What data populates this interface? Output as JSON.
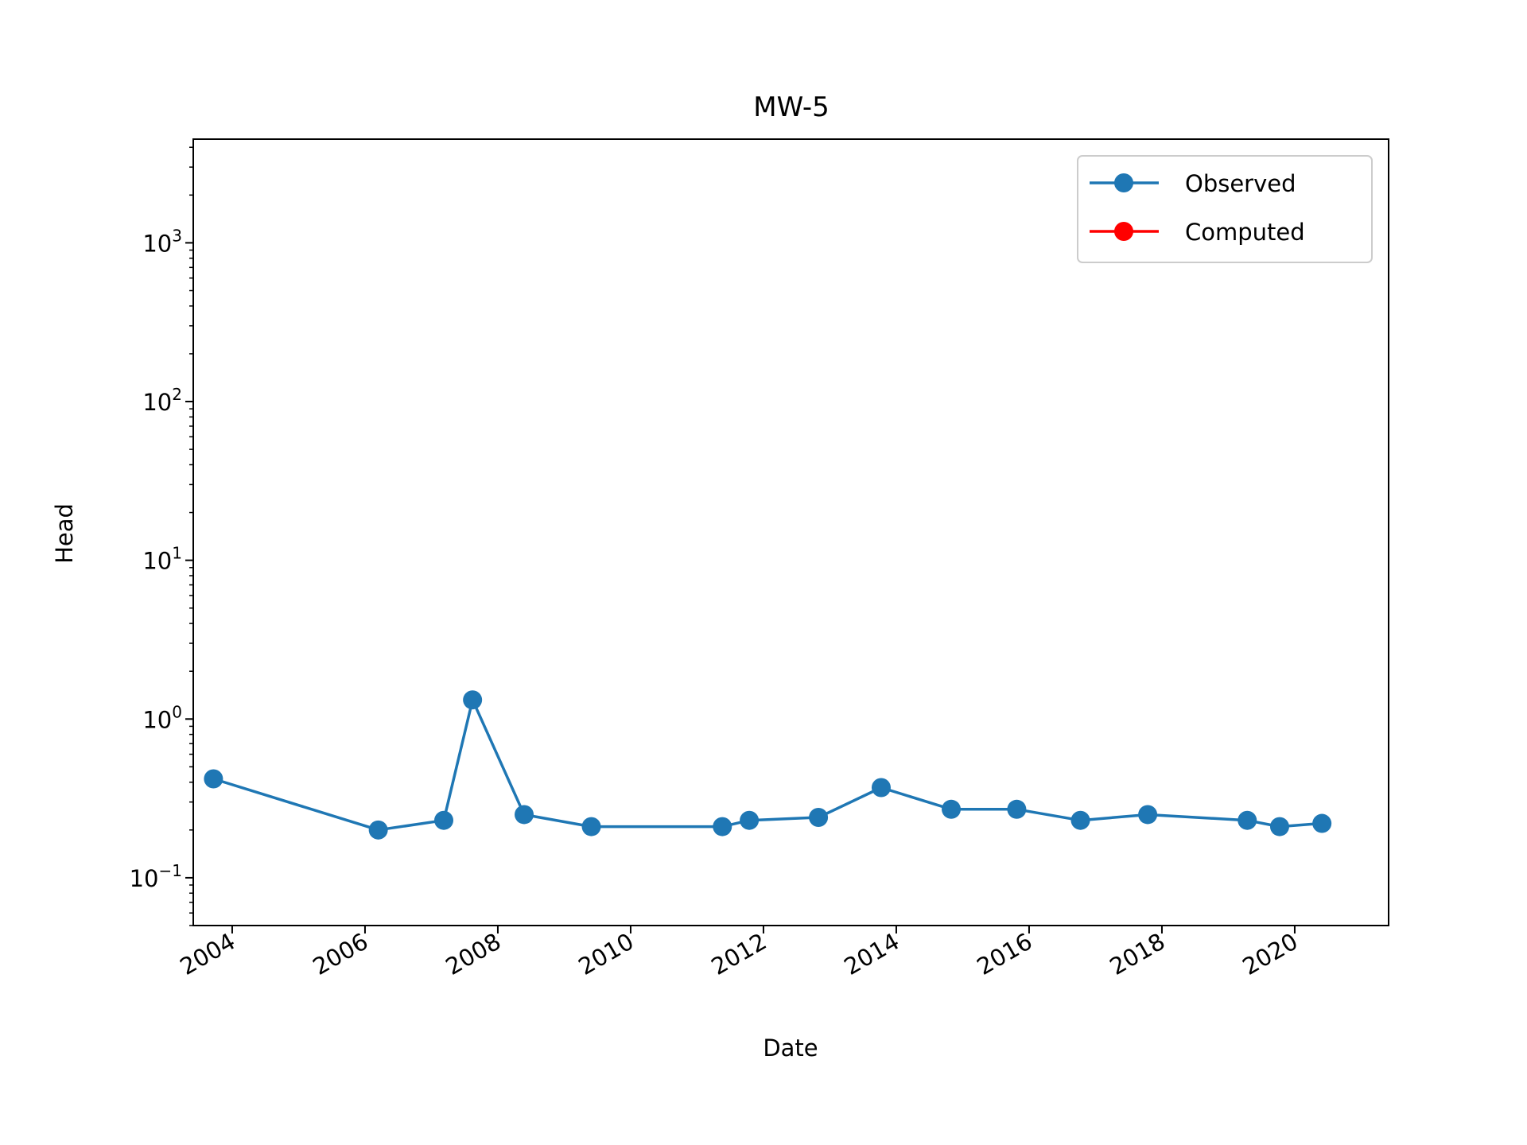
{
  "chart_data": {
    "type": "line",
    "title": "MW-5",
    "xlabel": "Date",
    "ylabel": "Head",
    "y_scale": "log",
    "ylim": [
      0.05,
      4500
    ],
    "xlim": [
      "2003-06-01",
      "2021-06-01"
    ],
    "x_ticks": [
      "2004",
      "2006",
      "2008",
      "2010",
      "2012",
      "2014",
      "2016",
      "2018",
      "2020"
    ],
    "y_ticks": [
      {
        "value": 0.1,
        "base": "10",
        "exp": "−1"
      },
      {
        "value": 1,
        "base": "10",
        "exp": "0"
      },
      {
        "value": 10,
        "base": "10",
        "exp": "1"
      },
      {
        "value": 100,
        "base": "10",
        "exp": "2"
      },
      {
        "value": 1000,
        "base": "10",
        "exp": "3"
      }
    ],
    "grid": false,
    "legend_position": "top-right",
    "series": [
      {
        "name": "Observed",
        "color": "#1f77b4",
        "x": [
          "2003-09-20",
          "2006-03-15",
          "2007-03-10",
          "2007-08-15",
          "2008-05-25",
          "2009-05-30",
          "2011-05-20",
          "2011-10-15",
          "2012-10-30",
          "2013-10-10",
          "2014-10-30",
          "2015-10-25",
          "2016-10-10",
          "2017-10-15",
          "2019-04-15",
          "2019-10-10",
          "2020-05-30"
        ],
        "y": [
          0.42,
          0.2,
          0.23,
          1.32,
          0.25,
          0.21,
          0.21,
          0.23,
          0.24,
          0.37,
          0.27,
          0.27,
          0.23,
          0.25,
          0.23,
          0.21,
          0.22
        ]
      },
      {
        "name": "Computed",
        "color": "#ff0000",
        "x": [],
        "y": []
      }
    ]
  }
}
